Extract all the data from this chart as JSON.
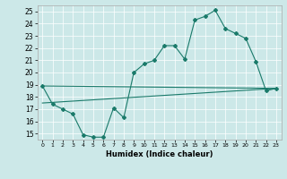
{
  "xlabel": "Humidex (Indice chaleur)",
  "bg_color": "#cce8e8",
  "line_color": "#1a7a6a",
  "xlim": [
    -0.5,
    23.5
  ],
  "ylim": [
    14.5,
    25.5
  ],
  "xticks": [
    0,
    1,
    2,
    3,
    4,
    5,
    6,
    7,
    8,
    9,
    10,
    11,
    12,
    13,
    14,
    15,
    16,
    17,
    18,
    19,
    20,
    21,
    22,
    23
  ],
  "yticks": [
    15,
    16,
    17,
    18,
    19,
    20,
    21,
    22,
    23,
    24,
    25
  ],
  "series1_x": [
    0,
    1,
    2,
    3,
    4,
    5,
    6,
    7,
    8,
    9,
    10,
    11,
    12,
    13,
    14,
    15,
    16,
    17,
    18,
    19,
    20,
    21,
    22,
    23
  ],
  "series1_y": [
    18.9,
    17.4,
    17.0,
    16.6,
    14.9,
    14.7,
    14.7,
    17.1,
    16.3,
    20.0,
    20.7,
    21.0,
    22.2,
    22.2,
    21.1,
    24.3,
    24.6,
    25.1,
    23.6,
    23.2,
    22.8,
    20.9,
    18.5,
    18.7
  ],
  "series2_x": [
    0,
    23
  ],
  "series2_y": [
    17.5,
    18.7
  ],
  "series3_x": [
    0,
    23
  ],
  "series3_y": [
    18.9,
    18.7
  ],
  "figwidth": 3.2,
  "figheight": 2.0,
  "dpi": 100
}
